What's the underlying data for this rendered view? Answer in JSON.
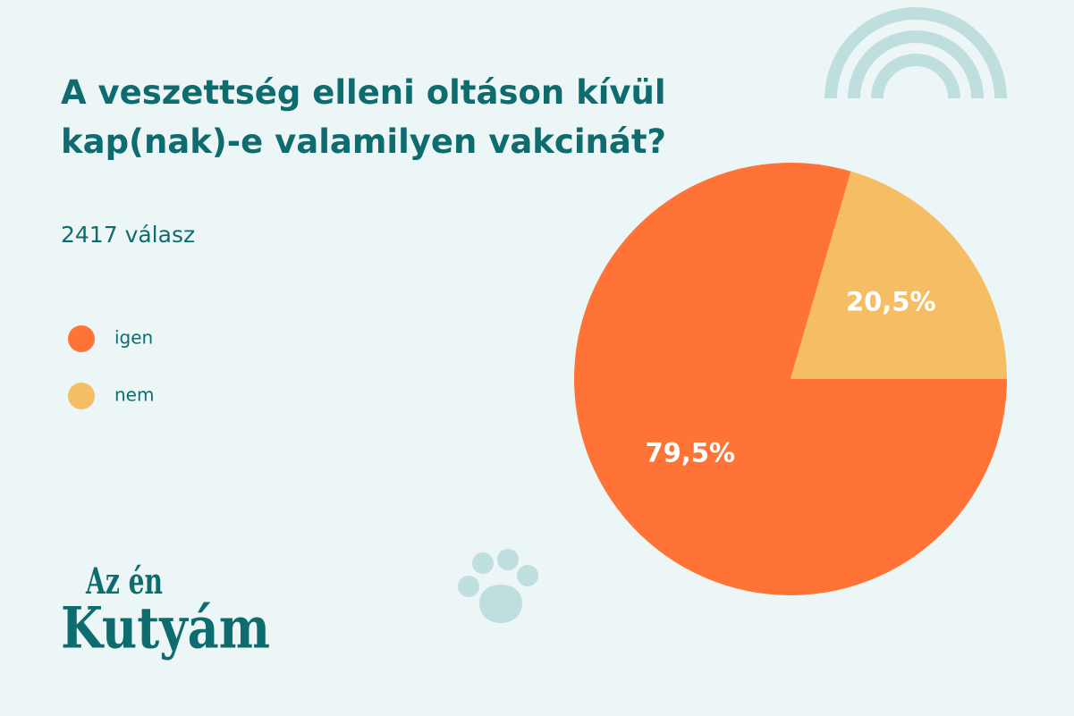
{
  "chart_data": {
    "type": "pie",
    "title": "A veszettség elleni oltáson kívül kap(nak)-e valamilyen vakcinát?",
    "subtitle": "2417 válasz",
    "categories": [
      "igen",
      "nem"
    ],
    "values": [
      79.5,
      20.5
    ],
    "value_labels": [
      "79,5%",
      "20,5%"
    ],
    "colors": [
      "#ff7337",
      "#f5be64"
    ],
    "legend": "left"
  },
  "logo": {
    "top": "Az én",
    "bottom": "Kutyám"
  }
}
